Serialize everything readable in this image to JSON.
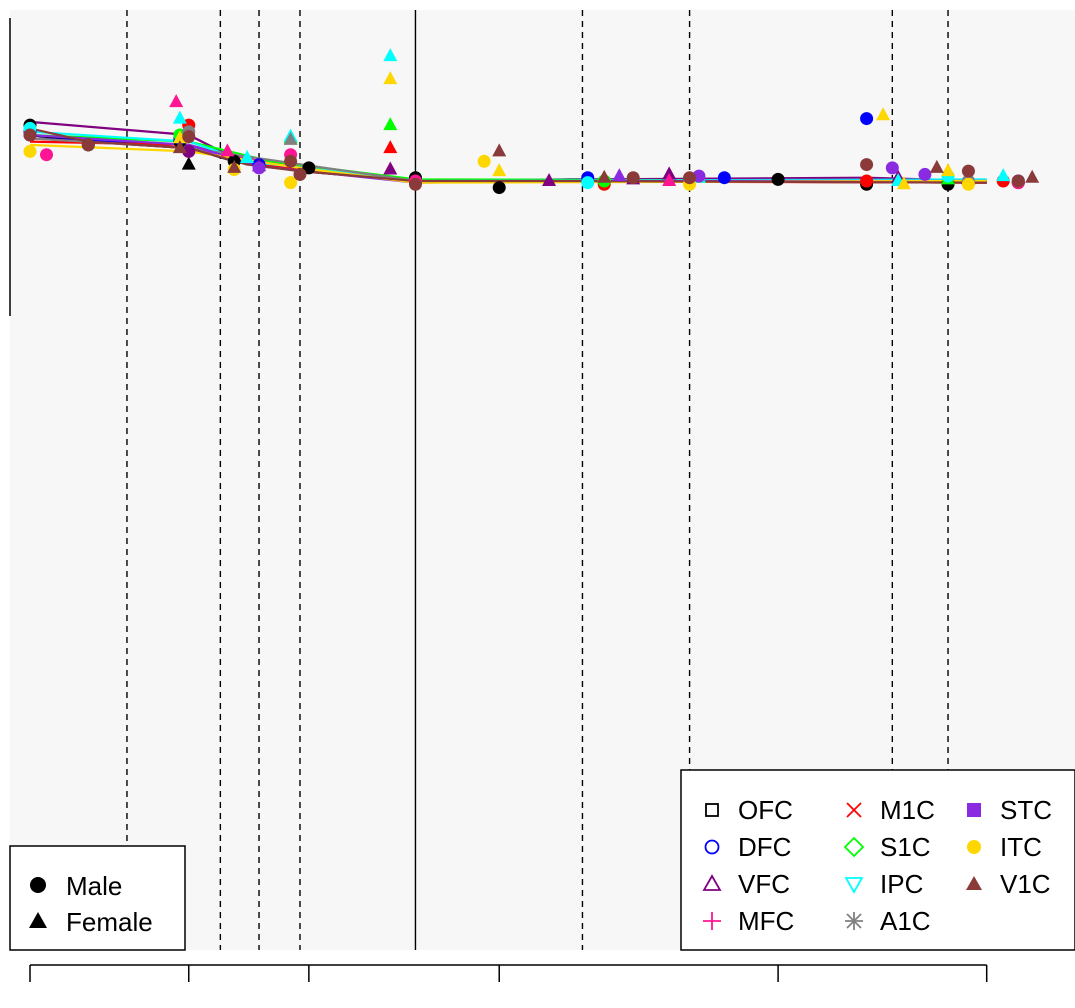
{
  "chart_data": {
    "type": "scatter",
    "title": "",
    "xlabel": "",
    "ylabel": "",
    "x_scale": "log",
    "xlim": [
      40,
      14000
    ],
    "ylim": [
      -26,
      2
    ],
    "grid": false,
    "x_ticks": [
      40,
      100,
      200,
      600,
      3000,
      10000
    ],
    "x_tick_labels": [
      "",
      "",
      "",
      "",
      "",
      ""
    ],
    "dashed_vlines": [
      70,
      120,
      150,
      190,
      970,
      1800,
      5800,
      8000
    ],
    "solid_vlines": [
      370
    ],
    "sex_legend": {
      "placement": "bottom-left",
      "entries": [
        {
          "label": "Male",
          "marker": "circle"
        },
        {
          "label": "Female",
          "marker": "triangle"
        }
      ]
    },
    "region_legend": {
      "placement": "bottom-right",
      "entries": [
        {
          "label": "OFC",
          "color": "#000000",
          "marker": "open-square"
        },
        {
          "label": "DFC",
          "color": "#0000ff",
          "marker": "open-circle"
        },
        {
          "label": "VFC",
          "color": "#800080",
          "marker": "open-triangle"
        },
        {
          "label": "MFC",
          "color": "#ff1493",
          "marker": "plus"
        },
        {
          "label": "M1C",
          "color": "#ff0000",
          "marker": "x"
        },
        {
          "label": "S1C",
          "color": "#00ff00",
          "marker": "open-diamond"
        },
        {
          "label": "IPC",
          "color": "#00ffff",
          "marker": "open-down-triangle"
        },
        {
          "label": "A1C",
          "color": "#808080",
          "marker": "asterisk"
        },
        {
          "label": "STC",
          "color": "#8a2be2",
          "marker": "filled-square"
        },
        {
          "label": "ITC",
          "color": "#ffd700",
          "marker": "filled-circle"
        },
        {
          "label": "V1C",
          "color": "#8b3a3a",
          "marker": "filled-triangle"
        }
      ]
    },
    "series": [
      {
        "name": "OFC",
        "color": "#000000",
        "line": [
          [
            40,
            -1.5
          ],
          [
            56,
            -1.7
          ],
          [
            100,
            -1.9
          ],
          [
            130,
            -2.3
          ],
          [
            190,
            -2.6
          ],
          [
            370,
            -2.9
          ],
          [
            900,
            -2.9
          ],
          [
            10000,
            -2.95
          ]
        ],
        "points": [
          [
            40,
            -1.2,
            "m"
          ],
          [
            56,
            -1.8,
            "m"
          ],
          [
            95,
            -1.7,
            "m"
          ],
          [
            100,
            -2.4,
            "f"
          ],
          [
            130,
            -2.3,
            "m"
          ],
          [
            200,
            -2.5,
            "m"
          ],
          [
            370,
            -2.8,
            "m"
          ],
          [
            600,
            -3.1,
            "m"
          ],
          [
            3000,
            -2.85,
            "m"
          ],
          [
            5000,
            -3.0,
            "m"
          ],
          [
            8000,
            -3.0,
            "m"
          ],
          [
            12000,
            -2.95,
            "m"
          ]
        ]
      },
      {
        "name": "DFC",
        "color": "#0000ff",
        "line": [
          [
            40,
            -1.6
          ],
          [
            100,
            -1.8
          ],
          [
            150,
            -2.4
          ],
          [
            370,
            -2.9
          ],
          [
            900,
            -2.85
          ],
          [
            10000,
            -2.9
          ]
        ],
        "points": [
          [
            40,
            -1.4,
            "m"
          ],
          [
            95,
            -1.6,
            "m"
          ],
          [
            150,
            -2.4,
            "m"
          ],
          [
            370,
            -2.95,
            "m"
          ],
          [
            1000,
            -2.8,
            "m"
          ],
          [
            2200,
            -2.8,
            "m"
          ],
          [
            5000,
            -1.0,
            "m"
          ],
          [
            12000,
            -2.9,
            "m"
          ]
        ]
      },
      {
        "name": "VFC",
        "color": "#800080",
        "line": [
          [
            40,
            -1.1
          ],
          [
            100,
            -1.5
          ],
          [
            130,
            -2.2
          ],
          [
            370,
            -2.9
          ],
          [
            1000,
            -2.85
          ],
          [
            5000,
            -2.8
          ],
          [
            10000,
            -2.9
          ]
        ],
        "points": [
          [
            40,
            -1.5,
            "m"
          ],
          [
            100,
            -2.0,
            "m"
          ],
          [
            150,
            -2.45,
            "f"
          ],
          [
            320,
            -2.55,
            "f"
          ],
          [
            800,
            -2.9,
            "f"
          ],
          [
            1300,
            -2.85,
            "f"
          ],
          [
            1600,
            -2.7,
            "f"
          ],
          [
            6000,
            -2.8,
            "f"
          ],
          [
            9000,
            -2.85,
            "f"
          ]
        ]
      },
      {
        "name": "MFC",
        "color": "#ff1493",
        "line": [
          [
            40,
            -1.6
          ],
          [
            100,
            -1.9
          ],
          [
            170,
            -2.4
          ],
          [
            370,
            -2.9
          ],
          [
            10000,
            -2.9
          ]
        ],
        "points": [
          [
            44,
            -2.1,
            "m"
          ],
          [
            93,
            -0.5,
            "f"
          ],
          [
            125,
            -2.0,
            "f"
          ],
          [
            180,
            -2.1,
            "m"
          ],
          [
            370,
            -2.9,
            "m"
          ],
          [
            1600,
            -2.9,
            "f"
          ],
          [
            12000,
            -2.95,
            "m"
          ]
        ]
      },
      {
        "name": "M1C",
        "color": "#ff0000",
        "line": [
          [
            40,
            -1.7
          ],
          [
            100,
            -1.8
          ],
          [
            150,
            -2.4
          ],
          [
            370,
            -2.9
          ],
          [
            10000,
            -2.95
          ]
        ],
        "points": [
          [
            100,
            -1.2,
            "m"
          ],
          [
            320,
            -1.9,
            "f"
          ],
          [
            1100,
            -3.0,
            "m"
          ],
          [
            5000,
            -2.9,
            "m"
          ],
          [
            11000,
            -2.9,
            "m"
          ]
        ]
      },
      {
        "name": "S1C",
        "color": "#00ff00",
        "line": [
          [
            40,
            -1.5
          ],
          [
            100,
            -1.7
          ],
          [
            160,
            -2.3
          ],
          [
            370,
            -2.85
          ],
          [
            10000,
            -2.9
          ]
        ],
        "points": [
          [
            95,
            -1.5,
            "m"
          ],
          [
            180,
            -1.6,
            "f"
          ],
          [
            320,
            -1.2,
            "f"
          ],
          [
            1100,
            -2.9,
            "m"
          ],
          [
            8000,
            -2.85,
            "f"
          ]
        ]
      },
      {
        "name": "IPC",
        "color": "#00ffff",
        "line": [
          [
            40,
            -1.4
          ],
          [
            100,
            -1.7
          ],
          [
            140,
            -2.3
          ],
          [
            370,
            -2.9
          ],
          [
            10000,
            -2.85
          ]
        ],
        "points": [
          [
            40,
            -1.3,
            "m"
          ],
          [
            95,
            -1.0,
            "f"
          ],
          [
            140,
            -2.2,
            "f"
          ],
          [
            180,
            -1.55,
            "f"
          ],
          [
            320,
            0.9,
            "f"
          ],
          [
            1000,
            -2.95,
            "m"
          ],
          [
            1900,
            -2.8,
            "f"
          ],
          [
            6000,
            -2.9,
            "f"
          ],
          [
            8000,
            -2.75,
            "m"
          ],
          [
            11000,
            -2.75,
            "f"
          ]
        ]
      },
      {
        "name": "A1C",
        "color": "#808080",
        "line": [
          [
            40,
            -1.6
          ],
          [
            100,
            -1.9
          ],
          [
            370,
            -2.9
          ],
          [
            10000,
            -2.9
          ]
        ],
        "points": [
          [
            100,
            -1.4,
            "m"
          ],
          [
            180,
            -1.65,
            "f"
          ],
          [
            1800,
            -2.85,
            "m"
          ],
          [
            9000,
            -2.9,
            "m"
          ]
        ]
      },
      {
        "name": "STC",
        "color": "#8a2be2",
        "line": [
          [
            40,
            -1.5
          ],
          [
            100,
            -1.8
          ],
          [
            150,
            -2.45
          ],
          [
            370,
            -2.95
          ],
          [
            1000,
            -2.9
          ],
          [
            10000,
            -2.9
          ]
        ],
        "points": [
          [
            150,
            -2.5,
            "m"
          ],
          [
            1200,
            -2.75,
            "f"
          ],
          [
            1900,
            -2.75,
            "m"
          ],
          [
            5800,
            -2.5,
            "m"
          ],
          [
            7000,
            -2.7,
            "m"
          ]
        ]
      },
      {
        "name": "ITC",
        "color": "#ffd700",
        "line": [
          [
            40,
            -1.8
          ],
          [
            100,
            -2.0
          ],
          [
            190,
            -2.5
          ],
          [
            370,
            -2.95
          ],
          [
            10000,
            -2.9
          ]
        ],
        "points": [
          [
            40,
            -2.0,
            "m"
          ],
          [
            95,
            -1.6,
            "f"
          ],
          [
            130,
            -2.55,
            "m"
          ],
          [
            180,
            -2.95,
            "m"
          ],
          [
            320,
            0.2,
            "f"
          ],
          [
            550,
            -2.3,
            "m"
          ],
          [
            600,
            -2.6,
            "f"
          ],
          [
            1800,
            -3.0,
            "m"
          ],
          [
            5500,
            -0.9,
            "f"
          ],
          [
            6200,
            -3.0,
            "f"
          ],
          [
            8000,
            -2.6,
            "f"
          ],
          [
            9000,
            -3.0,
            "m"
          ]
        ]
      },
      {
        "name": "V1C",
        "color": "#8b3a3a",
        "line": [
          [
            40,
            -1.3
          ],
          [
            56,
            -1.7
          ],
          [
            100,
            -1.9
          ],
          [
            140,
            -2.4
          ],
          [
            190,
            -2.6
          ],
          [
            370,
            -2.9
          ],
          [
            900,
            -2.9
          ],
          [
            10000,
            -2.95
          ]
        ],
        "points": [
          [
            40,
            -1.5,
            "m"
          ],
          [
            56,
            -1.8,
            "m"
          ],
          [
            95,
            -1.9,
            "f"
          ],
          [
            100,
            -1.55,
            "m"
          ],
          [
            130,
            -2.5,
            "f"
          ],
          [
            180,
            -2.3,
            "m"
          ],
          [
            190,
            -2.7,
            "m"
          ],
          [
            370,
            -3.0,
            "m"
          ],
          [
            600,
            -2.0,
            "f"
          ],
          [
            1100,
            -2.8,
            "f"
          ],
          [
            1300,
            -2.8,
            "m"
          ],
          [
            1800,
            -2.8,
            "m"
          ],
          [
            5000,
            -2.4,
            "m"
          ],
          [
            7500,
            -2.5,
            "f"
          ],
          [
            9000,
            -2.6,
            "m"
          ],
          [
            12000,
            -2.9,
            "m"
          ],
          [
            13000,
            -2.8,
            "f"
          ]
        ]
      }
    ]
  }
}
